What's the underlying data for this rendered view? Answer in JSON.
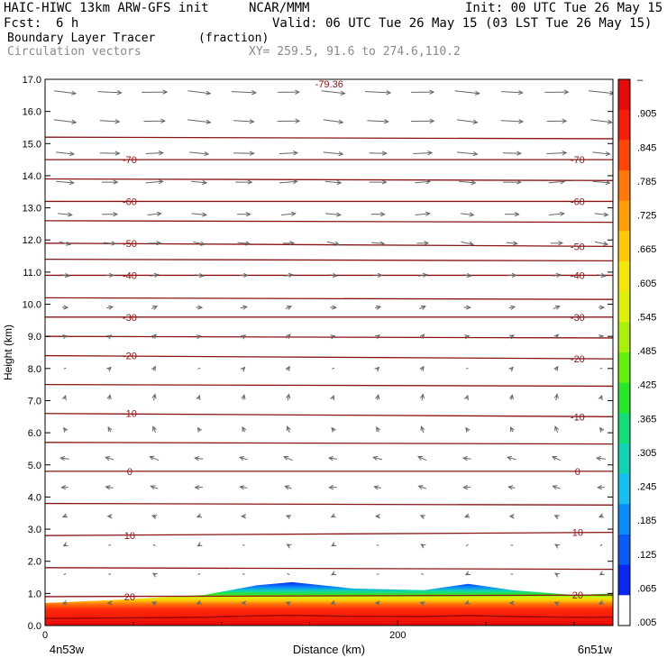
{
  "header": {
    "model": "HAIC-HIWC 13km ARW-GFS init",
    "center": "NCAR/MMM",
    "init": "Init: 00 UTC Tue 26 May 15",
    "fcst_label": "Fcst:",
    "fcst_value": "6 h",
    "valid": "Valid: 06 UTC Tue 26 May 15 (03 LST Tue 26 May 15)",
    "field": "Boundary Layer Tracer",
    "field_units": "(fraction)",
    "vectors": "Circulation vectors",
    "xy": "XY= 259.5, 91.6 to 274.6,110.2"
  },
  "chart_data": {
    "type": "heatmap",
    "ylabel": "Height (km)",
    "xlabel": "Distance (km)",
    "x_start_label": "4n53w",
    "x_end_label": "6n51w",
    "ylim": [
      0,
      17
    ],
    "xlim": [
      0,
      322
    ],
    "y_ticks": [
      "0.0",
      "1.0",
      "2.0",
      "3.0",
      "4.0",
      "5.0",
      "6.0",
      "7.0",
      "8.0",
      "9.0",
      "10.0",
      "11.0",
      "12.0",
      "13.0",
      "14.0",
      "15.0",
      "16.0",
      "17.0"
    ],
    "x_ticks": [
      {
        "value": 0,
        "label": "0"
      },
      {
        "value": 200,
        "label": "200"
      }
    ],
    "colorbar": {
      "labels": [
        "–",
        ".905",
        ".845",
        ".785",
        ".725",
        ".665",
        ".605",
        ".545",
        ".485",
        ".425",
        ".365",
        ".305",
        ".245",
        ".185",
        ".125",
        ".065",
        ".005"
      ],
      "colors": [
        "#ffffff",
        "#0a28f0",
        "#0a5af5",
        "#0a8cfa",
        "#19bef0",
        "#14d2b4",
        "#14dc78",
        "#28e628",
        "#64f00a",
        "#aaf00a",
        "#dcf00a",
        "#f5e60a",
        "#ffc80a",
        "#ffa00a",
        "#ff780a",
        "#ff460a",
        "#f51e0a",
        "#e60a0a"
      ]
    },
    "temperature_contours": [
      {
        "label": "-70",
        "value": -70,
        "height_left": 14.5,
        "height_right": 14.5
      },
      {
        "label": "-60",
        "value": -60,
        "height_left": 13.2,
        "height_right": 13.2
      },
      {
        "label": "-50",
        "value": -50,
        "height_left": 11.9,
        "height_right": 11.8
      },
      {
        "label": "-40",
        "value": -40,
        "height_left": 10.9,
        "height_right": 10.9
      },
      {
        "label": "-30",
        "value": -30,
        "height_left": 9.6,
        "height_right": 9.6
      },
      {
        "label": "-20",
        "value": -20,
        "height_left": 8.4,
        "height_right": 8.3
      },
      {
        "label": "-10",
        "value": -10,
        "height_left": 6.6,
        "height_right": 6.5
      },
      {
        "label": "0",
        "value": 0,
        "height_left": 4.8,
        "height_right": 4.8
      },
      {
        "label": "10",
        "value": 10,
        "height_left": 2.8,
        "height_right": 2.9
      },
      {
        "label": "20",
        "value": 20,
        "height_left": 0.9,
        "height_right": 0.95
      }
    ],
    "extra_contour_heights": [
      15.2,
      13.9,
      12.6,
      11.4,
      10.2,
      9.0,
      7.5,
      5.7,
      3.8,
      1.8
    ],
    "min_label": {
      "marker": "L",
      "value": "-79.36",
      "x": 155,
      "height": 16.8
    },
    "tracer_top_km": [
      {
        "x": 0,
        "y": 0.7
      },
      {
        "x": 40,
        "y": 0.8
      },
      {
        "x": 90,
        "y": 0.95
      },
      {
        "x": 120,
        "y": 1.25
      },
      {
        "x": 140,
        "y": 1.35
      },
      {
        "x": 175,
        "y": 1.15
      },
      {
        "x": 215,
        "y": 1.1
      },
      {
        "x": 240,
        "y": 1.3
      },
      {
        "x": 265,
        "y": 1.1
      },
      {
        "x": 300,
        "y": 0.95
      },
      {
        "x": 322,
        "y": 1.0
      }
    ],
    "vector_rows": [
      {
        "height": 16.6,
        "u": 1.0,
        "w": -0.05
      },
      {
        "height": 15.7,
        "u": 0.9,
        "w": -0.05
      },
      {
        "height": 14.7,
        "u": 0.8,
        "w": -0.02
      },
      {
        "height": 13.8,
        "u": 0.7,
        "w": 0.0
      },
      {
        "height": 12.8,
        "u": 0.6,
        "w": 0.0
      },
      {
        "height": 11.9,
        "u": 0.5,
        "w": -0.05
      },
      {
        "height": 10.9,
        "u": 0.35,
        "w": 0.0
      },
      {
        "height": 9.9,
        "u": 0.25,
        "w": 0.05
      },
      {
        "height": 9.0,
        "u": 0.15,
        "w": 0.1
      },
      {
        "height": 8.0,
        "u": 0.1,
        "w": 0.1
      },
      {
        "height": 7.1,
        "u": 0.05,
        "w": 0.2
      },
      {
        "height": 6.1,
        "u": -0.1,
        "w": 0.2
      },
      {
        "height": 5.2,
        "u": -0.35,
        "w": 0.1
      },
      {
        "height": 4.3,
        "u": -0.3,
        "w": 0.05
      },
      {
        "height": 3.4,
        "u": -0.15,
        "w": 0.0
      },
      {
        "height": 2.5,
        "u": -0.1,
        "w": 0.0
      },
      {
        "height": 1.6,
        "u": -0.1,
        "w": 0.0
      },
      {
        "height": 0.7,
        "u": -0.15,
        "w": 0.0
      }
    ],
    "vector_columns": 13
  }
}
